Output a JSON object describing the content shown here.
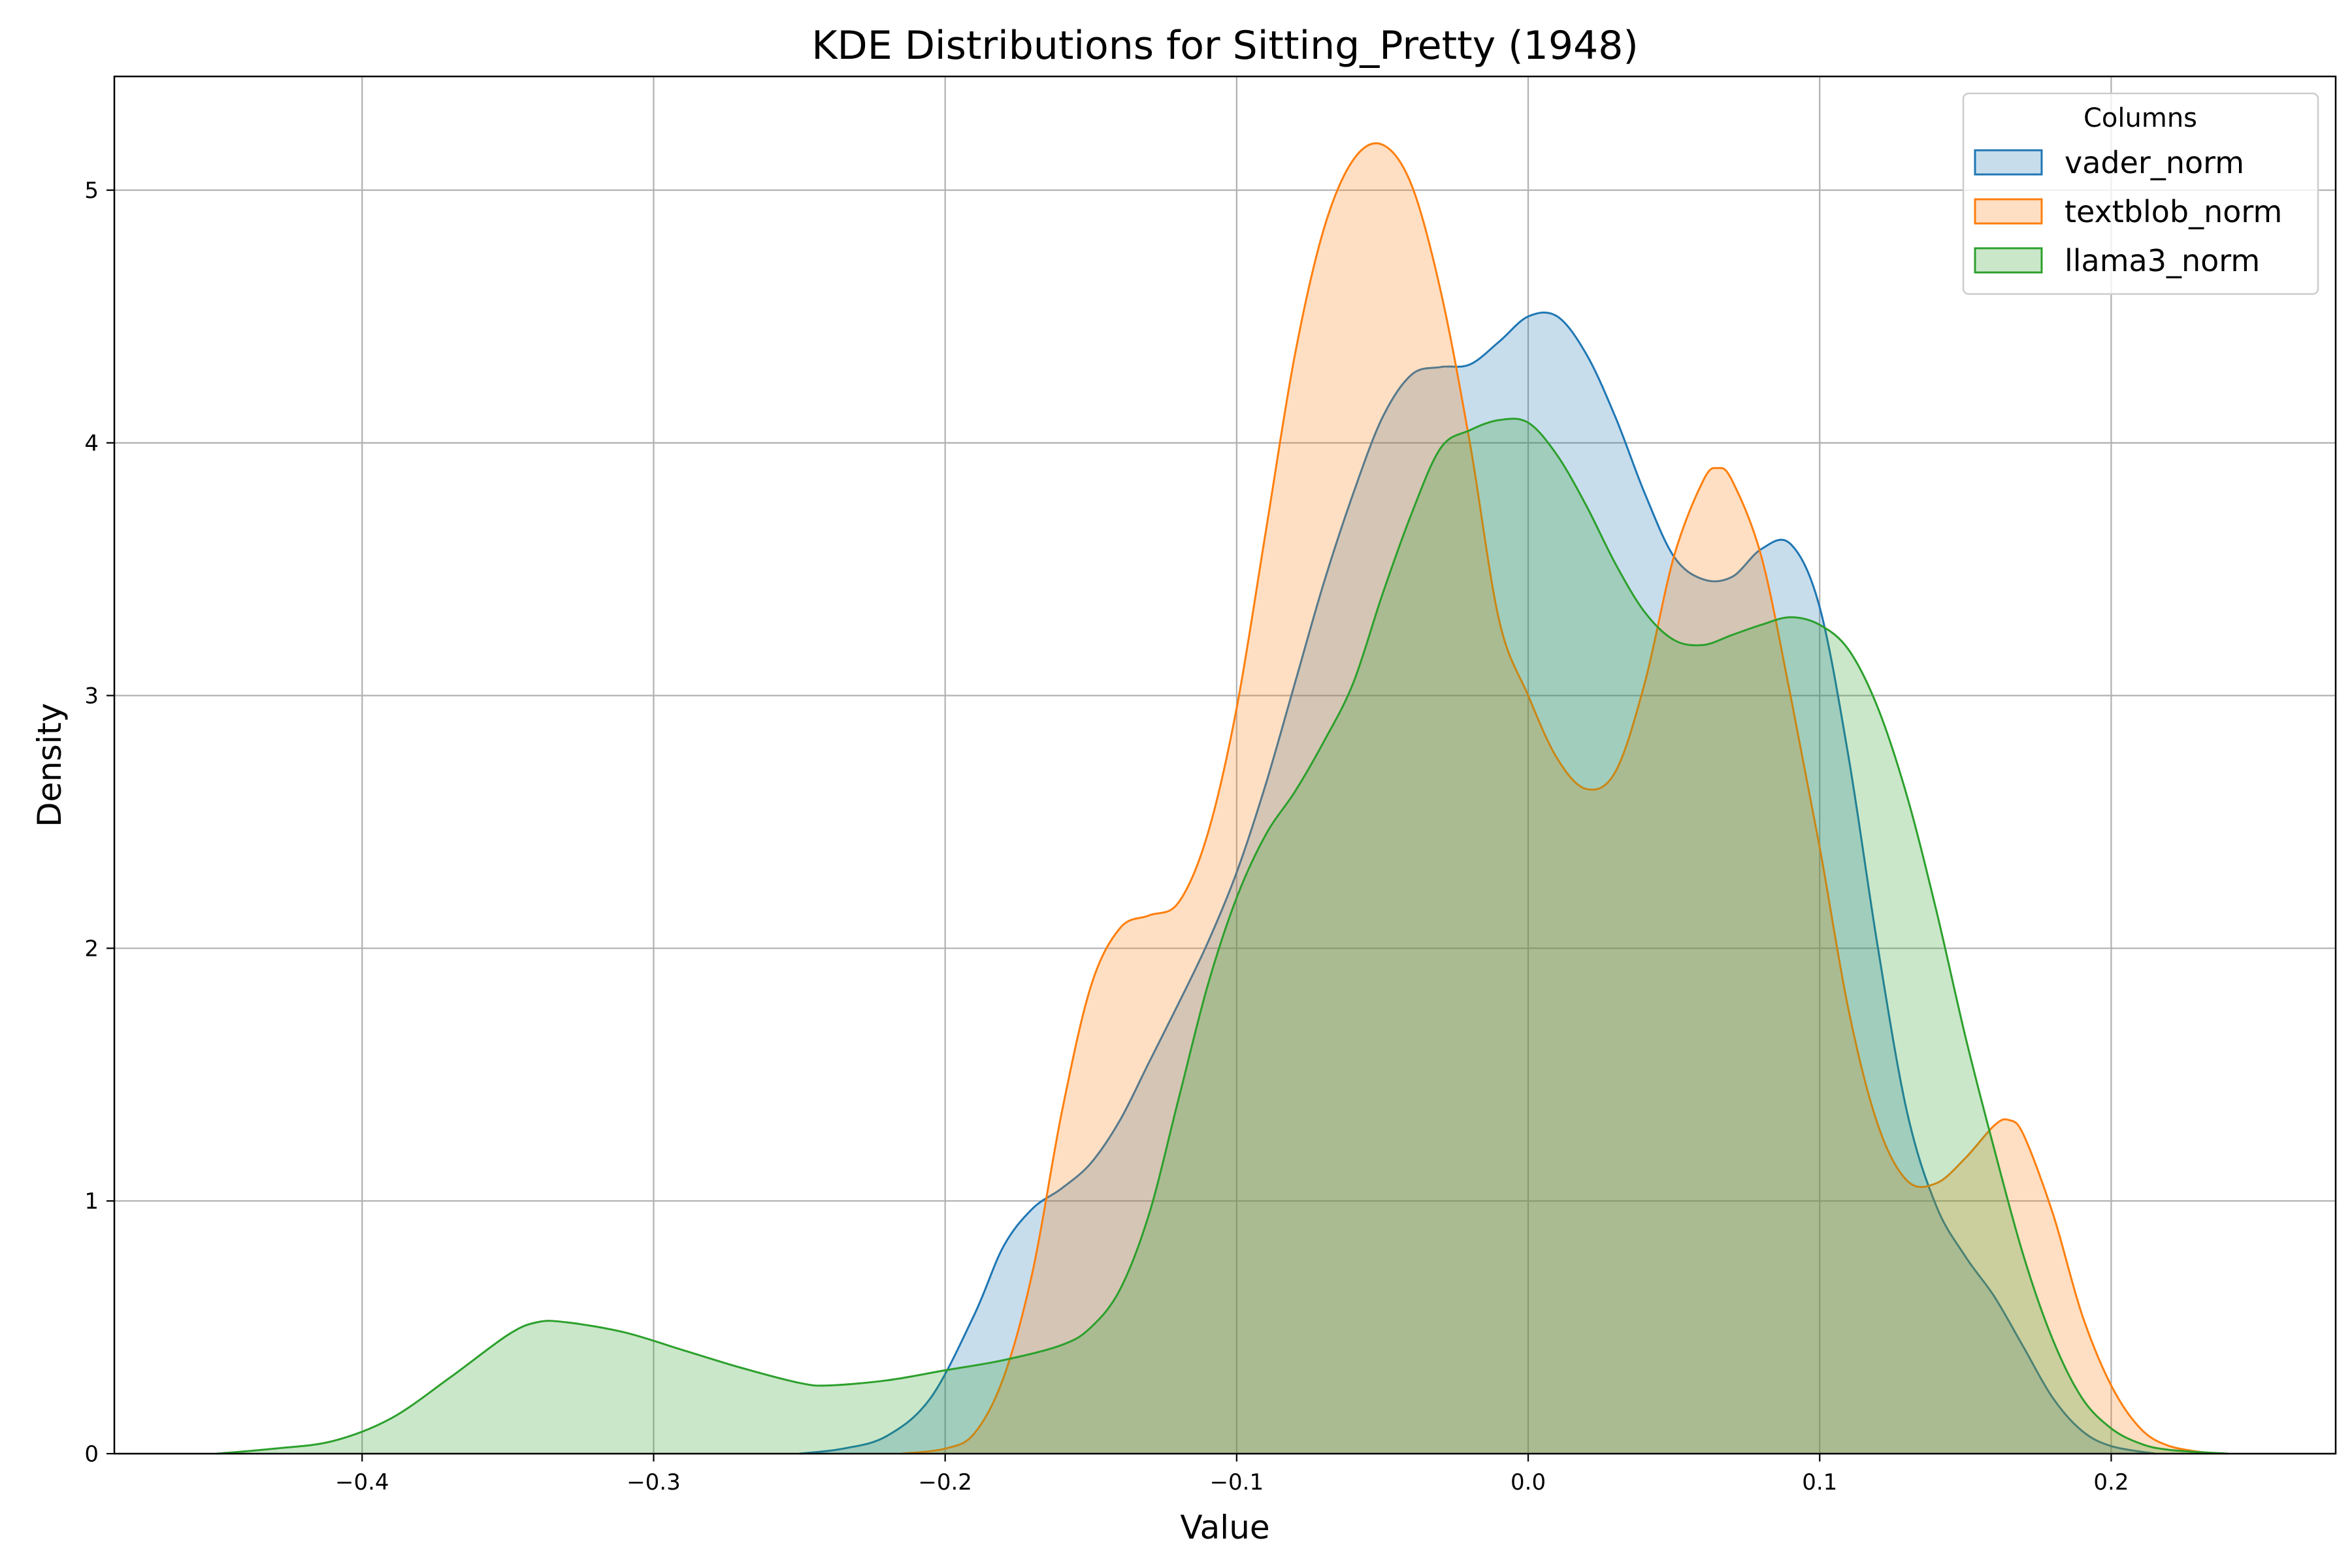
{
  "chart_data": {
    "type": "area",
    "title": "KDE Distributions for Sitting_Pretty (1948)",
    "xlabel": "Value",
    "ylabel": "Density",
    "xlim": [
      -0.485,
      0.277
    ],
    "ylim": [
      0,
      5.45
    ],
    "xticks": [
      -0.4,
      -0.3,
      -0.2,
      -0.1,
      0.0,
      0.1,
      0.2
    ],
    "xtick_labels": [
      "−0.4",
      "−0.3",
      "−0.2",
      "−0.1",
      "0.0",
      "0.1",
      "0.2"
    ],
    "yticks": [
      0,
      1,
      2,
      3,
      4,
      5
    ],
    "ytick_labels": [
      "0",
      "1",
      "2",
      "3",
      "4",
      "5"
    ],
    "grid": true,
    "legend": {
      "title": "Columns",
      "position": "top-right"
    },
    "series": [
      {
        "name": "vader_norm",
        "color": "#1f77b4",
        "points": [
          [
            -0.25,
            0
          ],
          [
            -0.235,
            0.02
          ],
          [
            -0.22,
            0.07
          ],
          [
            -0.205,
            0.22
          ],
          [
            -0.19,
            0.55
          ],
          [
            -0.18,
            0.82
          ],
          [
            -0.17,
            0.97
          ],
          [
            -0.16,
            1.05
          ],
          [
            -0.15,
            1.15
          ],
          [
            -0.14,
            1.32
          ],
          [
            -0.13,
            1.55
          ],
          [
            -0.12,
            1.78
          ],
          [
            -0.11,
            2.02
          ],
          [
            -0.1,
            2.3
          ],
          [
            -0.09,
            2.65
          ],
          [
            -0.08,
            3.05
          ],
          [
            -0.07,
            3.45
          ],
          [
            -0.06,
            3.8
          ],
          [
            -0.05,
            4.1
          ],
          [
            -0.04,
            4.27
          ],
          [
            -0.03,
            4.3
          ],
          [
            -0.02,
            4.31
          ],
          [
            -0.01,
            4.4
          ],
          [
            0.0,
            4.5
          ],
          [
            0.01,
            4.5
          ],
          [
            0.02,
            4.35
          ],
          [
            0.03,
            4.1
          ],
          [
            0.04,
            3.8
          ],
          [
            0.05,
            3.55
          ],
          [
            0.06,
            3.46
          ],
          [
            0.07,
            3.47
          ],
          [
            0.08,
            3.58
          ],
          [
            0.09,
            3.6
          ],
          [
            0.1,
            3.35
          ],
          [
            0.11,
            2.75
          ],
          [
            0.12,
            2.0
          ],
          [
            0.13,
            1.35
          ],
          [
            0.14,
            0.98
          ],
          [
            0.15,
            0.78
          ],
          [
            0.16,
            0.62
          ],
          [
            0.17,
            0.42
          ],
          [
            0.18,
            0.22
          ],
          [
            0.19,
            0.09
          ],
          [
            0.2,
            0.03
          ],
          [
            0.215,
            0
          ]
        ]
      },
      {
        "name": "textblob_norm",
        "color": "#ff7f0e",
        "points": [
          [
            -0.215,
            0
          ],
          [
            -0.2,
            0.02
          ],
          [
            -0.19,
            0.08
          ],
          [
            -0.18,
            0.3
          ],
          [
            -0.17,
            0.72
          ],
          [
            -0.16,
            1.35
          ],
          [
            -0.15,
            1.85
          ],
          [
            -0.14,
            2.08
          ],
          [
            -0.13,
            2.13
          ],
          [
            -0.12,
            2.18
          ],
          [
            -0.11,
            2.45
          ],
          [
            -0.1,
            2.95
          ],
          [
            -0.09,
            3.65
          ],
          [
            -0.08,
            4.35
          ],
          [
            -0.07,
            4.85
          ],
          [
            -0.06,
            5.12
          ],
          [
            -0.05,
            5.18
          ],
          [
            -0.04,
            5.02
          ],
          [
            -0.03,
            4.6
          ],
          [
            -0.02,
            4.0
          ],
          [
            -0.01,
            3.3
          ],
          [
            0.0,
            3.0
          ],
          [
            0.01,
            2.75
          ],
          [
            0.02,
            2.63
          ],
          [
            0.03,
            2.7
          ],
          [
            0.04,
            3.05
          ],
          [
            0.05,
            3.55
          ],
          [
            0.06,
            3.85
          ],
          [
            0.065,
            3.9
          ],
          [
            0.07,
            3.85
          ],
          [
            0.08,
            3.55
          ],
          [
            0.09,
            3.0
          ],
          [
            0.1,
            2.4
          ],
          [
            0.11,
            1.75
          ],
          [
            0.12,
            1.3
          ],
          [
            0.13,
            1.08
          ],
          [
            0.14,
            1.07
          ],
          [
            0.15,
            1.17
          ],
          [
            0.16,
            1.3
          ],
          [
            0.165,
            1.32
          ],
          [
            0.17,
            1.26
          ],
          [
            0.18,
            0.95
          ],
          [
            0.19,
            0.55
          ],
          [
            0.2,
            0.27
          ],
          [
            0.21,
            0.1
          ],
          [
            0.22,
            0.03
          ],
          [
            0.235,
            0
          ]
        ]
      },
      {
        "name": "llama3_norm",
        "color": "#2ca02c",
        "points": [
          [
            -0.45,
            0
          ],
          [
            -0.43,
            0.02
          ],
          [
            -0.41,
            0.05
          ],
          [
            -0.39,
            0.14
          ],
          [
            -0.37,
            0.3
          ],
          [
            -0.35,
            0.47
          ],
          [
            -0.34,
            0.52
          ],
          [
            -0.33,
            0.52
          ],
          [
            -0.31,
            0.48
          ],
          [
            -0.29,
            0.41
          ],
          [
            -0.27,
            0.34
          ],
          [
            -0.25,
            0.28
          ],
          [
            -0.24,
            0.27
          ],
          [
            -0.22,
            0.29
          ],
          [
            -0.2,
            0.33
          ],
          [
            -0.18,
            0.37
          ],
          [
            -0.16,
            0.43
          ],
          [
            -0.15,
            0.5
          ],
          [
            -0.14,
            0.65
          ],
          [
            -0.13,
            0.95
          ],
          [
            -0.12,
            1.4
          ],
          [
            -0.11,
            1.85
          ],
          [
            -0.1,
            2.2
          ],
          [
            -0.09,
            2.45
          ],
          [
            -0.08,
            2.62
          ],
          [
            -0.07,
            2.82
          ],
          [
            -0.06,
            3.05
          ],
          [
            -0.05,
            3.4
          ],
          [
            -0.04,
            3.72
          ],
          [
            -0.03,
            3.98
          ],
          [
            -0.02,
            4.05
          ],
          [
            -0.01,
            4.09
          ],
          [
            0.0,
            4.08
          ],
          [
            0.01,
            3.95
          ],
          [
            0.02,
            3.75
          ],
          [
            0.03,
            3.52
          ],
          [
            0.04,
            3.33
          ],
          [
            0.05,
            3.22
          ],
          [
            0.06,
            3.2
          ],
          [
            0.07,
            3.24
          ],
          [
            0.08,
            3.28
          ],
          [
            0.09,
            3.31
          ],
          [
            0.1,
            3.28
          ],
          [
            0.11,
            3.18
          ],
          [
            0.12,
            2.95
          ],
          [
            0.13,
            2.6
          ],
          [
            0.14,
            2.15
          ],
          [
            0.15,
            1.65
          ],
          [
            0.16,
            1.2
          ],
          [
            0.17,
            0.78
          ],
          [
            0.18,
            0.45
          ],
          [
            0.19,
            0.22
          ],
          [
            0.2,
            0.1
          ],
          [
            0.21,
            0.04
          ],
          [
            0.22,
            0.015
          ],
          [
            0.24,
            0
          ]
        ]
      }
    ]
  }
}
